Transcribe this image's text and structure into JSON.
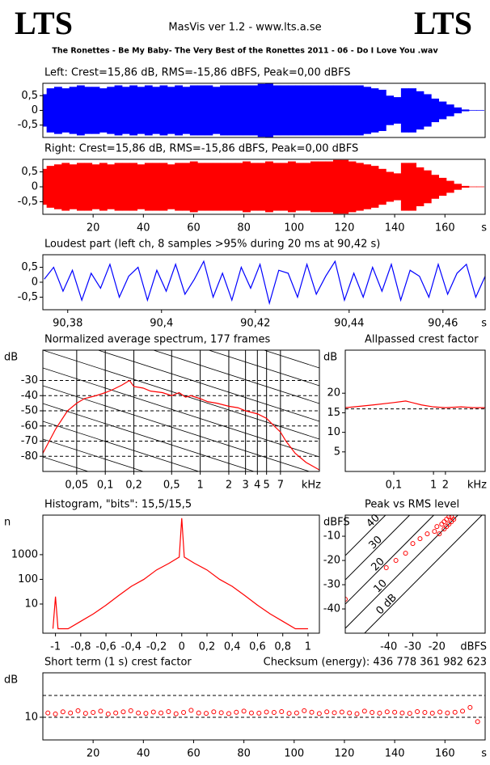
{
  "header": {
    "logo_left": "LTS",
    "logo_right": "LTS",
    "title": "MasVis ver 1.2 - www.lts.a.se",
    "subtitle": "The Ronettes - Be My Baby- The Very Best of the Ronettes 2011 - 06 - Do I Love You .wav"
  },
  "chart_data": [
    {
      "type": "envelope",
      "title": "Left: Crest=15,86 dB, RMS=-15,86 dBFS, Peak=0,00 dBFS",
      "color": "#0000ff",
      "xlim": [
        0,
        176
      ],
      "ylim": [
        -0.92,
        0.92
      ],
      "yticks": [
        {
          "value": 0.5,
          "label": "0,5"
        },
        0,
        {
          "value": -0.5,
          "label": "-0,5"
        }
      ],
      "x": [
        0,
        3,
        6,
        9,
        12,
        15,
        18,
        21,
        24,
        27,
        30,
        33,
        36,
        39,
        42,
        45,
        48,
        51,
        54,
        57,
        60,
        63,
        66,
        69,
        72,
        75,
        78,
        81,
        84,
        87,
        90,
        93,
        96,
        99,
        102,
        105,
        108,
        111,
        114,
        117,
        120,
        123,
        126,
        129,
        132,
        135,
        138,
        141,
        144,
        147,
        150,
        153,
        156,
        159,
        162,
        165,
        168,
        171,
        174
      ],
      "values": [
        0.55,
        0.75,
        0.8,
        0.75,
        0.8,
        0.85,
        0.8,
        0.8,
        0.75,
        0.8,
        0.85,
        0.8,
        0.85,
        0.8,
        0.85,
        0.8,
        0.85,
        0.8,
        0.85,
        0.8,
        0.85,
        0.85,
        0.85,
        0.8,
        0.85,
        0.85,
        0.85,
        0.85,
        0.85,
        0.9,
        1.0,
        0.85,
        0.85,
        0.85,
        0.85,
        0.85,
        0.85,
        0.85,
        0.85,
        0.85,
        0.85,
        0.85,
        0.85,
        0.8,
        0.75,
        0.7,
        0.5,
        0.45,
        0.75,
        0.75,
        0.65,
        0.55,
        0.4,
        0.3,
        0.2,
        0.1,
        0.03,
        0.01,
        0.01
      ]
    },
    {
      "type": "envelope",
      "title": "Right: Crest=15,86 dB, RMS=-15,86 dBFS, Peak=0,00 dBFS",
      "color": "#ff0000",
      "xlim": [
        0,
        176
      ],
      "ylim": [
        -0.92,
        0.92
      ],
      "xunit": "s",
      "xticks": [
        20,
        40,
        60,
        80,
        100,
        120,
        140,
        160
      ],
      "yticks": [
        {
          "value": 0.5,
          "label": "0,5"
        },
        0,
        {
          "value": -0.5,
          "label": "-0,5"
        }
      ],
      "x": [
        0,
        3,
        6,
        9,
        12,
        15,
        18,
        21,
        24,
        27,
        30,
        33,
        36,
        39,
        42,
        45,
        48,
        51,
        54,
        57,
        60,
        63,
        66,
        69,
        72,
        75,
        78,
        81,
        84,
        87,
        90,
        93,
        96,
        99,
        102,
        105,
        108,
        111,
        114,
        117,
        120,
        123,
        126,
        129,
        132,
        135,
        138,
        141,
        144,
        147,
        150,
        153,
        156,
        159,
        162,
        165,
        168,
        171,
        174
      ],
      "values": [
        0.6,
        0.7,
        0.75,
        0.8,
        0.75,
        0.8,
        0.8,
        0.75,
        0.8,
        0.75,
        0.8,
        0.8,
        0.8,
        0.75,
        0.8,
        0.8,
        0.8,
        0.75,
        0.8,
        0.8,
        0.85,
        0.8,
        0.8,
        0.8,
        0.8,
        0.8,
        0.8,
        0.85,
        0.8,
        0.8,
        0.85,
        0.8,
        0.8,
        0.85,
        0.8,
        0.8,
        0.85,
        0.85,
        0.85,
        0.9,
        0.9,
        0.85,
        0.8,
        0.75,
        0.7,
        0.6,
        0.5,
        0.45,
        0.8,
        0.8,
        0.65,
        0.55,
        0.4,
        0.3,
        0.2,
        0.1,
        0.03,
        0.01,
        0.01
      ]
    },
    {
      "type": "line",
      "title": "Loudest part (left  ch, 8 samples >95% during 20 ms at 90,42 s)",
      "color": "#0000ff",
      "xlim": [
        90.3747,
        90.469
      ],
      "ylim": [
        -0.92,
        0.92
      ],
      "xunit": "s",
      "xticks": [
        {
          "value": 90.38,
          "label": "90,38"
        },
        {
          "value": 90.4,
          "label": "90,4"
        },
        {
          "value": 90.42,
          "label": "90,42"
        },
        {
          "value": 90.44,
          "label": "90,44"
        },
        {
          "value": 90.46,
          "label": "90,46"
        }
      ],
      "yticks": [
        {
          "value": 0.5,
          "label": "0,5"
        },
        0,
        {
          "value": -0.5,
          "label": "-0,5"
        }
      ],
      "x": [
        90.375,
        90.377,
        90.379,
        90.381,
        90.383,
        90.385,
        90.387,
        90.389,
        90.391,
        90.393,
        90.395,
        90.397,
        90.399,
        90.401,
        90.403,
        90.405,
        90.407,
        90.409,
        90.411,
        90.413,
        90.415,
        90.417,
        90.419,
        90.421,
        90.423,
        90.425,
        90.427,
        90.429,
        90.431,
        90.433,
        90.435,
        90.437,
        90.439,
        90.441,
        90.443,
        90.445,
        90.447,
        90.449,
        90.451,
        90.453,
        90.455,
        90.457,
        90.459,
        90.461,
        90.463,
        90.465,
        90.467,
        90.469
      ],
      "values": [
        0.1,
        0.5,
        -0.3,
        0.4,
        -0.6,
        0.3,
        -0.2,
        0.6,
        -0.5,
        0.2,
        0.5,
        -0.6,
        0.4,
        -0.3,
        0.6,
        -0.4,
        0.1,
        0.7,
        -0.5,
        0.3,
        -0.6,
        0.5,
        -0.2,
        0.6,
        -0.7,
        0.4,
        0.3,
        -0.5,
        0.6,
        -0.4,
        0.2,
        0.7,
        -0.6,
        0.3,
        -0.5,
        0.5,
        -0.3,
        0.6,
        -0.6,
        0.4,
        0.2,
        -0.5,
        0.6,
        -0.4,
        0.3,
        0.6,
        -0.5,
        0.2
      ]
    },
    {
      "type": "line",
      "title": "Normalized average spectrum, 177 frames",
      "color": "#ff0000",
      "ylabel": "dB",
      "xunit": "kHz",
      "xscale": "log",
      "grid": true,
      "xlim": [
        0.022,
        18
      ],
      "ylim": [
        -90,
        -10
      ],
      "xticks": [
        {
          "value": 0.05,
          "label": "0,05"
        },
        {
          "value": 0.1,
          "label": "0,1"
        },
        {
          "value": 0.2,
          "label": "0,2"
        },
        {
          "value": 0.5,
          "label": "0,5"
        },
        1,
        2,
        3,
        4,
        5,
        7
      ],
      "yticks": [
        -30,
        -40,
        -50,
        -60,
        -70,
        -80
      ],
      "x": [
        0.022,
        0.03,
        0.04,
        0.05,
        0.06,
        0.08,
        0.1,
        0.12,
        0.15,
        0.18,
        0.2,
        0.25,
        0.3,
        0.4,
        0.5,
        0.6,
        0.7,
        0.8,
        1,
        1.2,
        1.5,
        2,
        2.5,
        3,
        4,
        5,
        6,
        7,
        8,
        10,
        13,
        18
      ],
      "values": [
        -78,
        -62,
        -50,
        -45,
        -42,
        -40,
        -38,
        -36,
        -33,
        -30,
        -34,
        -35,
        -37,
        -38,
        -40,
        -38,
        -41,
        -40,
        -42,
        -44,
        -45,
        -47,
        -48,
        -50,
        -52,
        -55,
        -60,
        -64,
        -70,
        -78,
        -84,
        -89
      ]
    },
    {
      "type": "line",
      "title": "Allpassed crest factor",
      "color": "#ff0000",
      "ylabel": "dB",
      "xunit": "kHz",
      "xscale": "log",
      "xlim": [
        0.006,
        20
      ],
      "ylim": [
        0,
        31
      ],
      "reference_lines": [
        16
      ],
      "xticks": [
        {
          "value": 0.1,
          "label": "0,1"
        },
        1,
        2
      ],
      "yticks": [
        20,
        15,
        10,
        5
      ],
      "x": [
        0.006,
        0.01,
        0.03,
        0.1,
        0.2,
        0.5,
        1,
        2,
        5,
        10,
        20
      ],
      "values": [
        16.3,
        16.5,
        17,
        17.6,
        18,
        17,
        16.5,
        16.3,
        16.5,
        16.3,
        16.3
      ]
    },
    {
      "type": "line",
      "title": "Histogram, \"bits\": 15,5/15,5",
      "color": "#ff0000",
      "ylabel": "n",
      "yscale": "log",
      "xlim": [
        -1.1,
        1.09
      ],
      "ylim": [
        0.66,
        40000
      ],
      "xticks": [
        -1,
        {
          "value": -0.8,
          "label": "-0,8"
        },
        {
          "value": -0.6,
          "label": "-0,6"
        },
        {
          "value": -0.4,
          "label": "-0,4"
        },
        {
          "value": -0.2,
          "label": "-0,2"
        },
        0,
        {
          "value": 0.2,
          "label": "0,2"
        },
        {
          "value": 0.4,
          "label": "0,4"
        },
        {
          "value": 0.6,
          "label": "0,6"
        },
        {
          "value": 0.8,
          "label": "0,8"
        },
        1
      ],
      "yticks": [
        1000,
        100,
        10
      ],
      "x": [
        -1.02,
        -1,
        -0.98,
        -0.9,
        -0.8,
        -0.7,
        -0.6,
        -0.5,
        -0.4,
        -0.3,
        -0.2,
        -0.1,
        -0.02,
        0,
        0.02,
        0.1,
        0.2,
        0.3,
        0.4,
        0.5,
        0.6,
        0.7,
        0.8,
        0.9,
        1
      ],
      "values": [
        1,
        20,
        1,
        1,
        2,
        4,
        9,
        22,
        52,
        100,
        240,
        450,
        800,
        30000,
        800,
        450,
        240,
        100,
        52,
        22,
        9,
        4,
        2,
        1,
        1
      ]
    },
    {
      "type": "scatter",
      "title": "Peak vs RMS level",
      "color": "#ff0000",
      "ylabel": "dBFS",
      "xunit": "dBFS",
      "xlim": [
        -58,
        0
      ],
      "ylim": [
        -50,
        -1.3
      ],
      "xticks": [
        -40,
        -30,
        -20
      ],
      "yticks": [
        -10,
        -20,
        -30,
        -40
      ],
      "diagonals": [
        {
          "value": 40,
          "label": "40"
        },
        {
          "value": 30,
          "label": "30"
        },
        {
          "value": 20,
          "label": "20"
        },
        {
          "value": 10,
          "label": "10"
        },
        {
          "value": 0,
          "label": "0 dB"
        }
      ],
      "x": [
        -58,
        -41,
        -37,
        -33,
        -30,
        -27,
        -24,
        -21,
        -20,
        -19,
        -18,
        -17,
        -17,
        -16,
        -16,
        -15,
        -15,
        -14,
        -14,
        -13
      ],
      "values": [
        -36,
        -23,
        -20,
        -17,
        -13,
        -11,
        -9,
        -8,
        -6,
        -9,
        -5,
        -7,
        -4,
        -6,
        -3,
        -5,
        -2,
        -4,
        -2,
        -3
      ]
    },
    {
      "type": "scatter",
      "title": "Short term (1 s) crest factor",
      "annotation": "Checksum (energy):   436 778 361 982 623",
      "color": "#ff0000",
      "ylabel": "dB",
      "xunit": "s",
      "xlim": [
        0,
        176
      ],
      "ylim": [
        -0.4,
        30.4
      ],
      "reference_lines": [
        10,
        20
      ],
      "xticks": [
        20,
        40,
        60,
        80,
        100,
        120,
        140,
        160
      ],
      "yticks": [
        10
      ],
      "x": [
        2,
        5,
        8,
        11,
        14,
        17,
        20,
        23,
        26,
        29,
        32,
        35,
        38,
        41,
        44,
        47,
        50,
        53,
        56,
        59,
        62,
        65,
        68,
        71,
        74,
        77,
        80,
        83,
        86,
        89,
        92,
        95,
        98,
        101,
        104,
        107,
        110,
        113,
        116,
        119,
        122,
        125,
        128,
        131,
        134,
        137,
        140,
        143,
        146,
        149,
        152,
        155,
        158,
        161,
        164,
        167,
        170,
        173
      ],
      "values": [
        12,
        11.5,
        12.5,
        12,
        13,
        11.8,
        12.2,
        12.8,
        11.5,
        12,
        12.5,
        13,
        12,
        11.8,
        12.4,
        12,
        12.6,
        11.6,
        12.2,
        13.2,
        12,
        11.8,
        12.5,
        12.1,
        11.7,
        12.3,
        12.8,
        12,
        11.9,
        12.4,
        12.2,
        12.6,
        11.8,
        12,
        13,
        12.3,
        11.7,
        12.5,
        12.1,
        12.4,
        12,
        11.6,
        12.8,
        12.2,
        11.9,
        12.5,
        12.3,
        12,
        11.8,
        12.6,
        12.2,
        11.9,
        12.4,
        12,
        12.3,
        12.8,
        14.5,
        8
      ]
    }
  ]
}
